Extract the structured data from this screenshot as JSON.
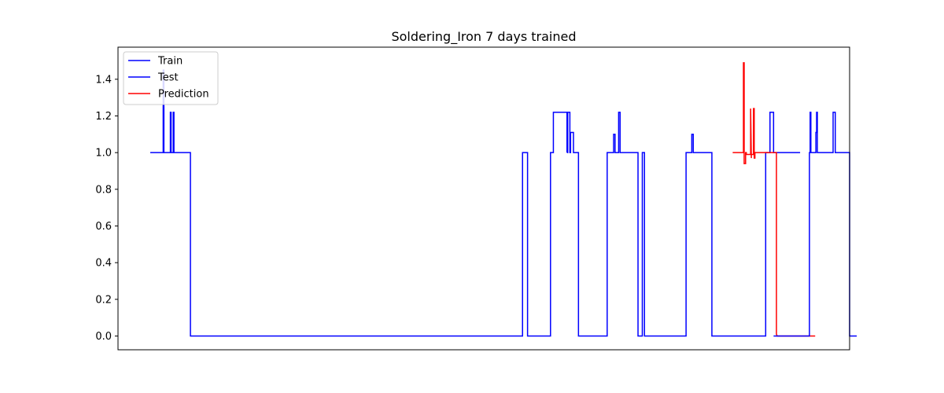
{
  "chart_data": {
    "type": "line",
    "title": "Soldering_Iron 7 days trained",
    "xlabel": "",
    "ylabel": "",
    "x_ticks_shown": false,
    "xlim": [
      -20,
      1000
    ],
    "ylim": [
      -0.075,
      1.575
    ],
    "yticks": [
      "0.0",
      "0.2",
      "0.4",
      "0.6",
      "0.8",
      "1.0",
      "1.2",
      "1.4"
    ],
    "ytick_values": [
      0.0,
      0.2,
      0.4,
      0.6,
      0.8,
      1.0,
      1.2,
      1.4
    ],
    "grid": false,
    "legend": {
      "placement": "top-left",
      "entries": [
        "Train",
        "Test",
        "Prediction"
      ]
    },
    "series": [
      {
        "name": "Train",
        "color": "#0000ff",
        "x": [
          25,
          43,
          43,
          44,
          44,
          53,
          53,
          54,
          54,
          57,
          57,
          58,
          58,
          81,
          81,
          544,
          544,
          547,
          547,
          551,
          551,
          583,
          583,
          587,
          587,
          606,
          606
        ],
        "y": [
          1.0,
          1.0,
          1.45,
          1.45,
          1.0,
          1.0,
          1.22,
          1.22,
          1.0,
          1.0,
          1.22,
          1.22,
          1.0,
          1.0,
          0.0,
          0.0,
          1.0,
          1.0,
          1.0,
          1.0,
          0.0,
          0.0,
          1.0,
          1.0,
          1.22,
          1.22,
          1.0
        ]
      },
      {
        "name": "Test",
        "color": "#0000ff",
        "x": [
          606,
          607,
          607,
          610,
          610,
          611,
          611,
          615,
          615,
          622,
          622,
          662,
          662,
          671,
          671,
          673,
          673,
          678,
          678,
          680,
          680,
          705,
          705,
          711,
          711,
          714,
          714,
          772,
          772,
          780,
          780,
          782,
          782,
          808,
          808,
          808,
          808,
          883,
          883,
          889,
          889,
          894,
          894,
          931
        ],
        "y": [
          1.0,
          1.0,
          1.22,
          1.22,
          1.0,
          1.0,
          1.11,
          1.11,
          1.0,
          1.0,
          0.0,
          0.0,
          1.0,
          1.0,
          1.1,
          1.1,
          1.0,
          1.0,
          1.22,
          1.22,
          1.0,
          1.0,
          0.0,
          0.0,
          1.0,
          1.0,
          0.0,
          0.0,
          1.0,
          1.0,
          1.1,
          1.1,
          1.0,
          1.0,
          0.0,
          0.0,
          0.0,
          0.0,
          1.0,
          1.0,
          1.22,
          1.22,
          1.0,
          1.0
        ]
      },
      {
        "name": "Prediction",
        "color": "#ff0000",
        "x": [
          837,
          852,
          852,
          853,
          853,
          855,
          855,
          856,
          856,
          862,
          862,
          863,
          863,
          866,
          866,
          867,
          867,
          868,
          868,
          898,
          898,
          899,
          903,
          952
        ],
        "y": [
          1.0,
          1.0,
          1.49,
          1.49,
          0.94,
          0.94,
          1.0,
          1.0,
          0.99,
          0.99,
          1.24,
          0.97,
          0.99,
          0.99,
          1.24,
          1.24,
          0.97,
          0.97,
          1.0,
          1.0,
          0.01,
          0.0,
          0.0,
          0.0
        ]
      },
      {
        "name": "Test",
        "color": "#0000ff",
        "x": [
          894,
          944,
          944,
          945,
          945,
          946,
          946,
          952,
          952,
          953,
          953,
          954,
          954,
          955,
          955,
          977,
          977,
          980,
          980,
          981,
          981,
          1000,
          1000,
          1010
        ],
        "y": [
          0.0,
          0.0,
          1.0,
          1.0,
          1.22,
          1.22,
          1.0,
          1.0,
          1.0,
          1.0,
          1.11,
          1.11,
          1.22,
          1.22,
          1.0,
          1.0,
          1.22,
          1.22,
          1.0,
          1.0,
          1.0,
          1.0,
          0.0,
          0.0
        ]
      }
    ]
  }
}
